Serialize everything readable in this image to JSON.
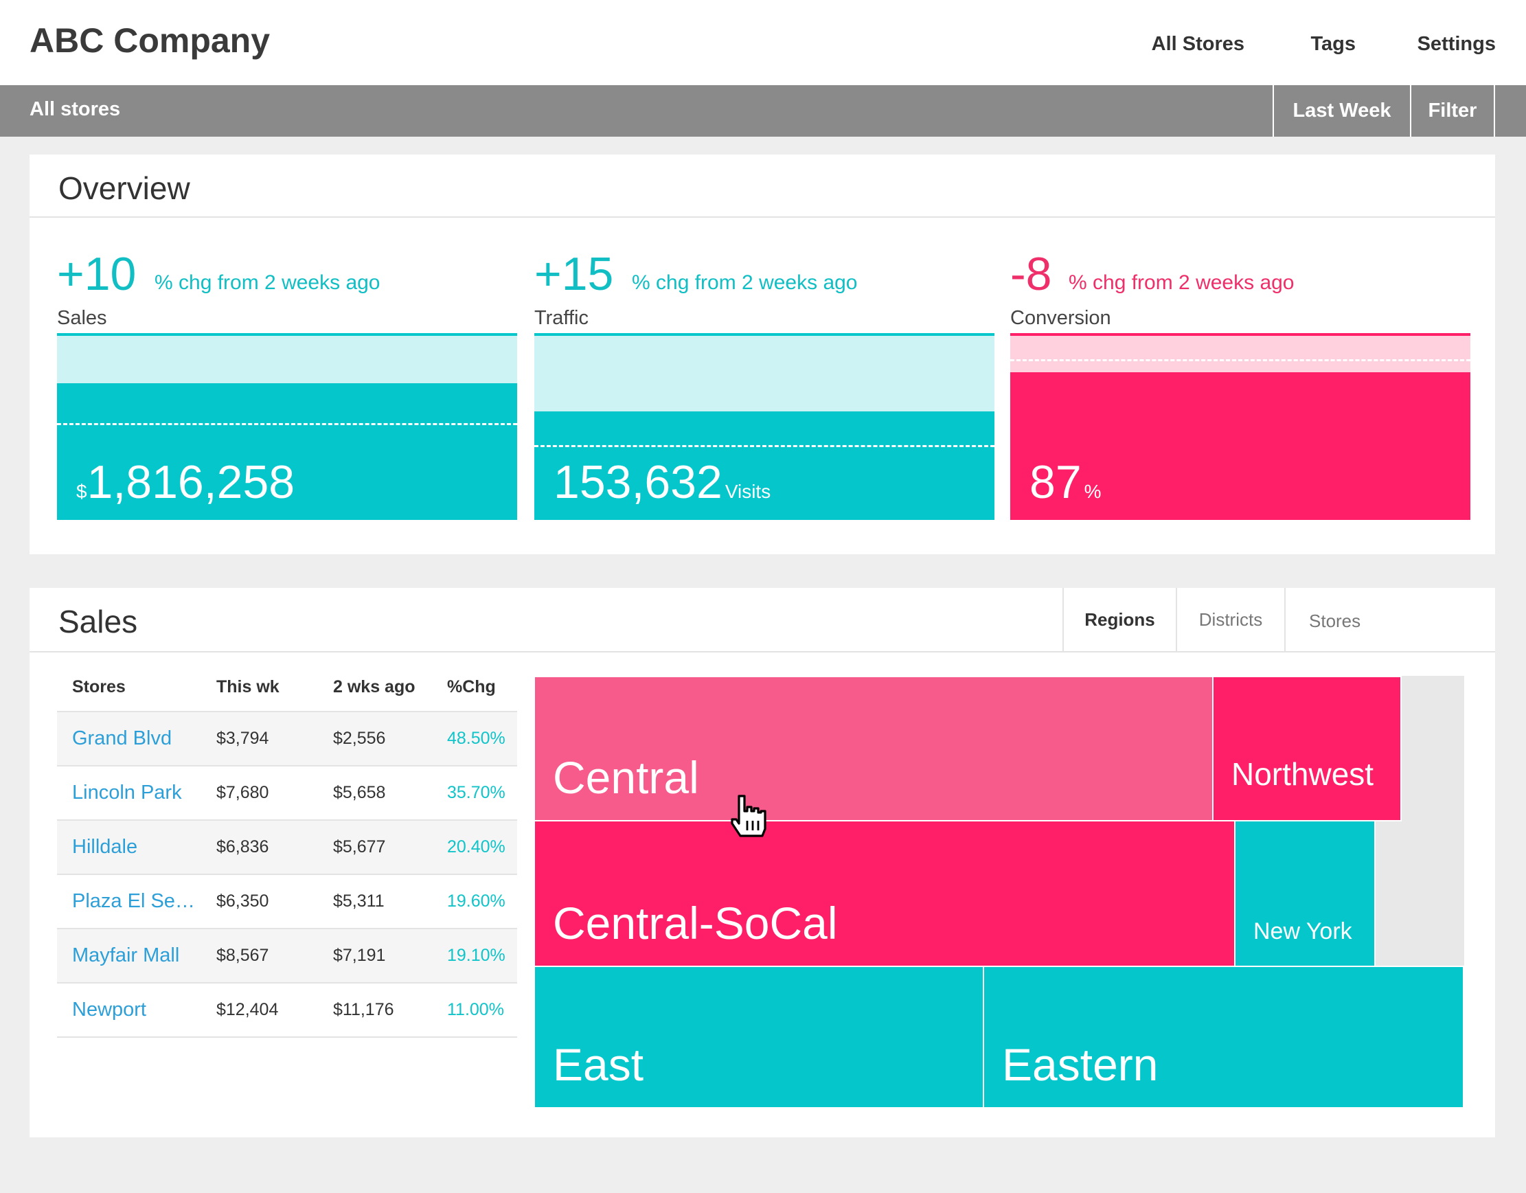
{
  "header": {
    "brand": "ABC Company",
    "nav": [
      "All Stores",
      "Tags",
      "Settings"
    ]
  },
  "subbar": {
    "crumb": "All stores",
    "date_range": "Last Week",
    "filter": "Filter"
  },
  "overview": {
    "title": "Overview",
    "kpis": [
      {
        "delta": "+10",
        "change_label": "% chg from 2 weeks ago",
        "label": "Sales",
        "prefix": "$",
        "value": "1,816,258",
        "suffix": "",
        "level_fraction": 0.73,
        "prior_fraction": 0.52,
        "color": "#05c6cb",
        "light": "#cdf3f4",
        "text_color": "#10bec4"
      },
      {
        "delta": "+15",
        "change_label": "% chg from 2 weeks ago",
        "label": "Traffic",
        "prefix": "",
        "value": "153,632",
        "suffix": "Visits",
        "level_fraction": 0.58,
        "prior_fraction": 0.4,
        "color": "#05c6cb",
        "light": "#cdf3f4",
        "text_color": "#10bec4"
      },
      {
        "delta": "-8",
        "change_label": "% chg from 2 weeks ago",
        "label": "Conversion",
        "prefix": "",
        "value": "87",
        "suffix": "%",
        "level_fraction": 0.79,
        "prior_fraction": 0.86,
        "color": "#ff1f68",
        "light": "#ffd1df",
        "text_color": "#ee2f69"
      }
    ]
  },
  "sales": {
    "title": "Sales",
    "tabs": [
      "Regions",
      "Districts",
      "Stores"
    ],
    "active_tab": "Regions",
    "table": {
      "headers": [
        "Stores",
        "This wk",
        "2 wks ago",
        "%Chg"
      ],
      "rows": [
        [
          "Grand Blvd",
          "$3,794",
          "$2,556",
          "48.50%"
        ],
        [
          "Lincoln Park",
          "$7,680",
          "$5,658",
          "35.70%"
        ],
        [
          "Hilldale",
          "$6,836",
          "$5,677",
          "20.40%"
        ],
        [
          "Plaza El Segundo",
          "$6,350",
          "$5,311",
          "19.60%"
        ],
        [
          "Mayfair Mall",
          "$8,567",
          "$7,191",
          "19.10%"
        ],
        [
          "Newport",
          "$12,404",
          "$11,176",
          "11.00%"
        ]
      ]
    },
    "treemap": [
      {
        "name": "Central",
        "color": "#f65b8c"
      },
      {
        "name": "Northwest",
        "color": "#ff1f68"
      },
      {
        "name": "Central-SoCal",
        "color": "#ff1f68"
      },
      {
        "name": "New York",
        "color": "#05c6cb"
      },
      {
        "name": "East",
        "color": "#05c6cb"
      },
      {
        "name": "Eastern",
        "color": "#05c6cb"
      }
    ]
  }
}
